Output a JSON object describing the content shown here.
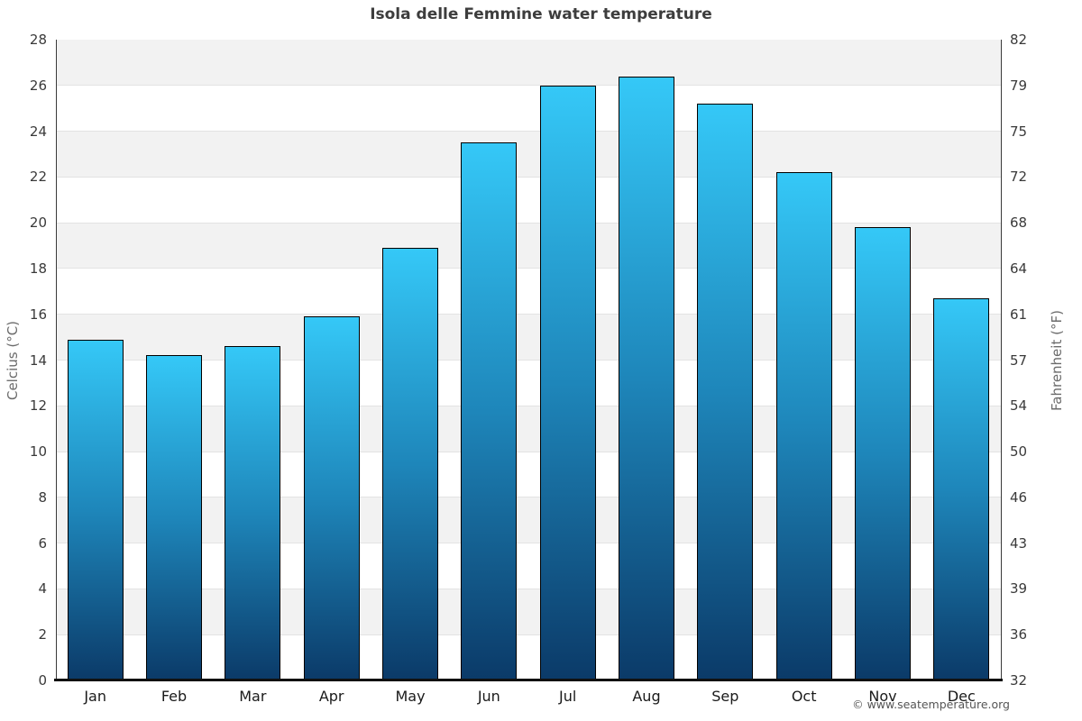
{
  "page": {
    "copyright": "© www.seatemperature.org"
  },
  "chart_data": {
    "type": "bar",
    "title": "Isola delle Femmine water temperature",
    "categories": [
      "Jan",
      "Feb",
      "Mar",
      "Apr",
      "May",
      "Jun",
      "Jul",
      "Aug",
      "Sep",
      "Oct",
      "Nov",
      "Dec"
    ],
    "series": [
      {
        "name": "Water temperature",
        "unit": "°C",
        "values": [
          14.9,
          14.2,
          14.6,
          15.9,
          18.9,
          23.5,
          26.0,
          26.4,
          25.2,
          22.2,
          19.8,
          16.7
        ]
      }
    ],
    "ylabel_left": "Celcius (°C)",
    "ylabel_right": "Fahrenheit (°F)",
    "ylim": [
      0,
      28
    ],
    "yticks_celsius": [
      28,
      26,
      24,
      22,
      20,
      18,
      16,
      14,
      12,
      10,
      8,
      6,
      4,
      2,
      0
    ],
    "yticks_fahrenheit": [
      82,
      79,
      75,
      72,
      68,
      64,
      61,
      57,
      54,
      50,
      46,
      43,
      39,
      36,
      32
    ],
    "grid": "alternating horizontal bands every 2°C, light gray / white",
    "legend": "none",
    "colors": {
      "bar_gradient_top": "#35c8f7",
      "bar_gradient_mid": "#1e86ba",
      "bar_gradient_bottom": "#0b3a68",
      "bar_border": "#000000",
      "band_gray": "#f2f2f2",
      "band_white": "#ffffff",
      "gridline": "#e3e3e3",
      "title_text": "#3d3d3d",
      "axis_title_text": "#6b6b6b",
      "tick_text": "#3a3a3a"
    }
  }
}
